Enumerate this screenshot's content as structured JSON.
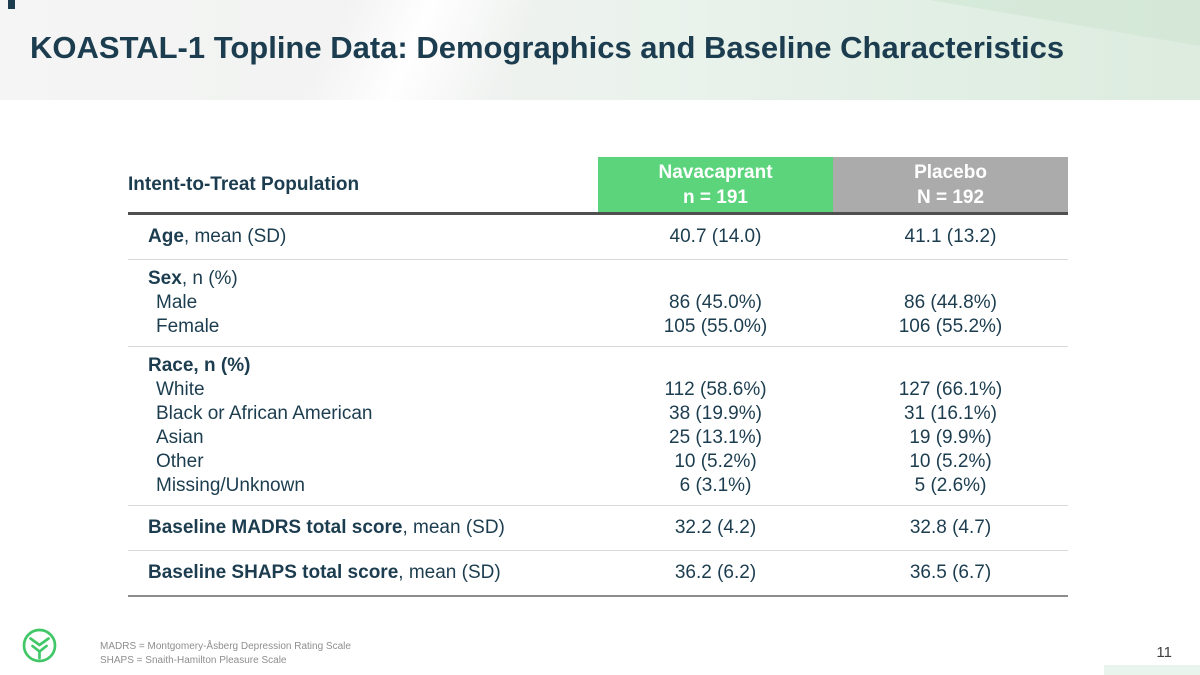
{
  "slide": {
    "title": "KOASTAL-1 Topline Data: Demographics and Baseline Characteristics",
    "page_number": "11"
  },
  "colors": {
    "title_teal": "#1C3D50",
    "accent_green": "#5BD47B",
    "header_gray": "#ABABAB"
  },
  "table": {
    "corner_label": "Intent-to-Treat Population",
    "columns": [
      {
        "label": "Navacaprant",
        "sublabel": "n = 191",
        "color": "#5BD47B"
      },
      {
        "label": "Placebo",
        "sublabel": "N = 192",
        "color": "#ABABAB"
      }
    ],
    "groups": [
      {
        "rows": [
          {
            "bold": "Age",
            "rest": ", mean (SD)",
            "indent": false,
            "values": [
              "40.7 (14.0)",
              "41.1 (13.2)"
            ]
          }
        ]
      },
      {
        "rows": [
          {
            "bold": "Sex",
            "rest": ", n (%)",
            "indent": false,
            "values": [
              "",
              ""
            ]
          },
          {
            "bold": "",
            "rest": "Male",
            "indent": true,
            "values": [
              "86 (45.0%)",
              "86 (44.8%)"
            ]
          },
          {
            "bold": "",
            "rest": "Female",
            "indent": true,
            "values": [
              "105 (55.0%)",
              "106 (55.2%)"
            ]
          }
        ]
      },
      {
        "rows": [
          {
            "bold": "Race, n (%)",
            "rest": "",
            "indent": false,
            "values": [
              "",
              ""
            ]
          },
          {
            "bold": "",
            "rest": "White",
            "indent": true,
            "values": [
              "112 (58.6%)",
              "127 (66.1%)"
            ]
          },
          {
            "bold": "",
            "rest": "Black or African American",
            "indent": true,
            "values": [
              "38 (19.9%)",
              "31 (16.1%)"
            ]
          },
          {
            "bold": "",
            "rest": "Asian",
            "indent": true,
            "values": [
              "25 (13.1%)",
              "19 (9.9%)"
            ]
          },
          {
            "bold": "",
            "rest": "Other",
            "indent": true,
            "values": [
              "10 (5.2%)",
              "10 (5.2%)"
            ]
          },
          {
            "bold": "",
            "rest": "Missing/Unknown",
            "indent": true,
            "values": [
              "6 (3.1%)",
              "5 (2.6%)"
            ]
          }
        ]
      },
      {
        "rows": [
          {
            "bold": "Baseline MADRS total score",
            "rest": ", mean (SD)",
            "indent": false,
            "values": [
              "32.2 (4.2)",
              "32.8 (4.7)"
            ]
          }
        ]
      },
      {
        "rows": [
          {
            "bold": "Baseline SHAPS total score",
            "rest": ", mean (SD)",
            "indent": false,
            "values": [
              "36.2 (6.2)",
              "36.5 (6.7)"
            ]
          }
        ]
      }
    ]
  },
  "footnotes": [
    "MADRS = Montgomery-Åsberg Depression Rating Scale",
    "SHAPS = Snaith-Hamilton Pleasure Scale"
  ]
}
